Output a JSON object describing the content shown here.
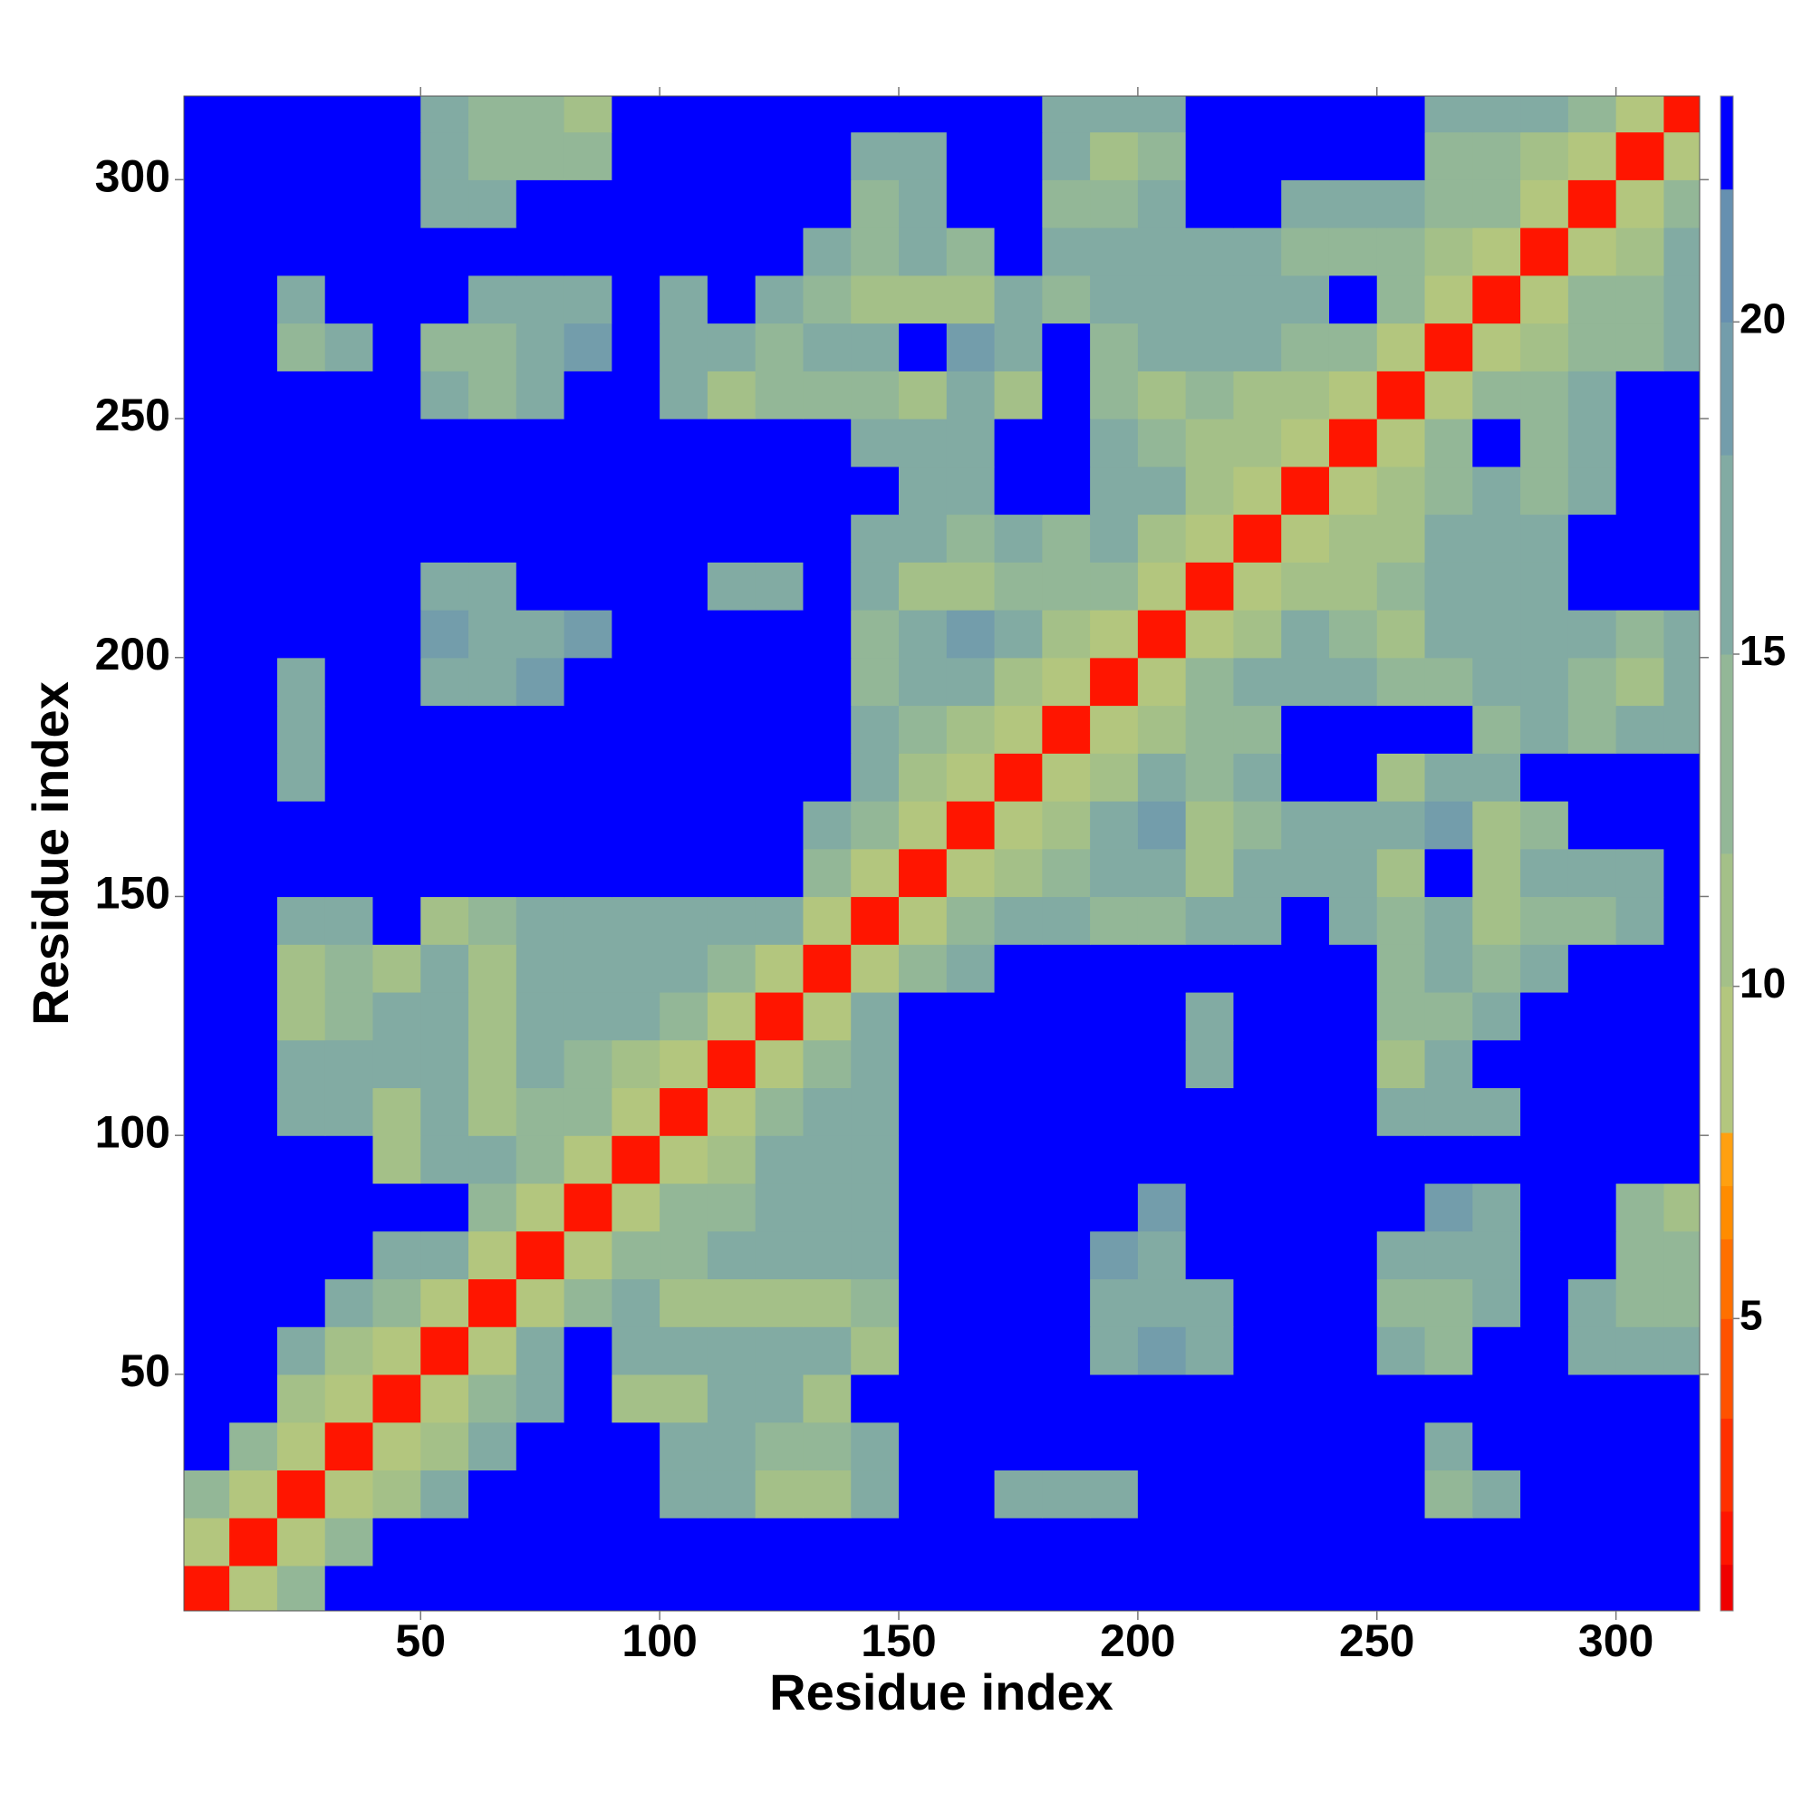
{
  "chart_data": {
    "type": "heatmap",
    "x_label": "Residue index",
    "y_label": "Residue index",
    "xlim": [
      0.5,
      317.5
    ],
    "ylim": [
      0.5,
      317.5
    ],
    "xticks": [
      50,
      100,
      150,
      200,
      250,
      300
    ],
    "yticks": [
      50,
      100,
      150,
      200,
      250,
      300
    ],
    "bins": [
      0,
      10,
      20,
      30,
      40,
      50,
      60,
      70,
      80,
      90,
      100,
      110,
      120,
      130,
      140,
      150,
      160,
      170,
      180,
      190,
      200,
      210,
      220,
      230,
      240,
      250,
      260,
      270,
      280,
      290,
      300,
      310,
      320
    ],
    "z": [
      [
        2,
        9,
        15,
        23,
        23,
        23,
        23,
        23,
        23,
        23,
        23,
        23,
        23,
        23,
        23,
        23,
        23,
        23,
        23,
        23,
        23,
        23,
        23,
        23,
        23,
        23,
        23,
        23,
        23,
        23,
        23,
        23
      ],
      [
        9,
        2,
        9,
        15,
        23,
        23,
        23,
        23,
        23,
        23,
        23,
        23,
        23,
        23,
        23,
        23,
        23,
        23,
        23,
        23,
        23,
        23,
        23,
        23,
        23,
        23,
        23,
        23,
        23,
        23,
        23,
        23
      ],
      [
        15,
        9,
        2,
        9,
        12,
        16,
        23,
        23,
        23,
        23,
        18,
        18,
        12,
        12,
        18,
        23,
        23,
        16,
        16,
        18,
        23,
        23,
        23,
        23,
        23,
        23,
        14,
        18,
        23,
        23,
        23,
        23
      ],
      [
        23,
        15,
        9,
        2,
        9,
        12,
        16,
        23,
        23,
        23,
        16,
        18,
        14,
        14,
        16,
        23,
        23,
        23,
        23,
        23,
        23,
        23,
        23,
        23,
        23,
        23,
        16,
        23,
        23,
        23,
        23,
        23
      ],
      [
        23,
        23,
        12,
        9,
        2,
        9,
        14,
        18,
        23,
        12,
        12,
        18,
        18,
        12,
        23,
        23,
        23,
        23,
        23,
        23,
        23,
        23,
        23,
        23,
        23,
        23,
        23,
        23,
        23,
        23,
        23,
        23
      ],
      [
        23,
        23,
        16,
        12,
        9,
        2,
        9,
        16,
        23,
        16,
        16,
        18,
        18,
        16,
        12,
        23,
        23,
        23,
        23,
        18,
        20,
        18,
        23,
        23,
        23,
        16,
        14,
        23,
        23,
        18,
        16,
        18
      ],
      [
        23,
        23,
        23,
        16,
        14,
        9,
        2,
        9,
        15,
        16,
        12,
        12,
        12,
        12,
        14,
        23,
        23,
        23,
        23,
        18,
        18,
        18,
        23,
        23,
        23,
        14,
        14,
        16,
        23,
        16,
        14,
        14
      ],
      [
        23,
        23,
        23,
        23,
        18,
        16,
        9,
        2,
        9,
        14,
        14,
        16,
        16,
        16,
        16,
        23,
        23,
        23,
        23,
        20,
        18,
        23,
        23,
        23,
        23,
        16,
        16,
        18,
        23,
        23,
        14,
        14
      ],
      [
        23,
        23,
        23,
        23,
        23,
        23,
        15,
        9,
        2,
        9,
        14,
        14,
        16,
        16,
        18,
        23,
        23,
        23,
        23,
        23,
        20,
        23,
        23,
        23,
        23,
        23,
        20,
        18,
        23,
        23,
        14,
        12
      ],
      [
        23,
        23,
        23,
        23,
        12,
        16,
        16,
        14,
        9,
        2,
        9,
        12,
        16,
        18,
        18,
        23,
        23,
        23,
        23,
        23,
        23,
        23,
        23,
        23,
        23,
        23,
        23,
        23,
        23,
        23,
        23,
        23
      ],
      [
        23,
        23,
        18,
        16,
        12,
        16,
        12,
        14,
        14,
        9,
        2,
        9,
        14,
        16,
        18,
        23,
        23,
        23,
        23,
        23,
        23,
        23,
        23,
        23,
        23,
        18,
        18,
        18,
        23,
        23,
        23,
        23
      ],
      [
        23,
        23,
        18,
        18,
        18,
        18,
        12,
        16,
        14,
        12,
        9,
        2,
        9,
        14,
        16,
        23,
        23,
        23,
        23,
        23,
        23,
        16,
        23,
        23,
        23,
        12,
        16,
        23,
        23,
        23,
        23,
        23
      ],
      [
        23,
        23,
        12,
        14,
        18,
        18,
        12,
        16,
        16,
        16,
        14,
        9,
        2,
        9,
        16,
        23,
        23,
        23,
        23,
        23,
        23,
        16,
        23,
        23,
        23,
        14,
        14,
        18,
        23,
        23,
        23,
        23
      ],
      [
        23,
        23,
        12,
        14,
        12,
        16,
        12,
        16,
        16,
        18,
        16,
        14,
        9,
        2,
        9,
        15,
        18,
        23,
        23,
        23,
        23,
        23,
        23,
        23,
        23,
        14,
        16,
        14,
        16,
        23,
        23,
        23
      ],
      [
        23,
        23,
        18,
        16,
        23,
        12,
        14,
        16,
        18,
        18,
        18,
        16,
        16,
        9,
        2,
        9,
        14,
        16,
        18,
        14,
        14,
        16,
        18,
        23,
        18,
        14,
        16,
        12,
        14,
        14,
        16,
        23
      ],
      [
        23,
        23,
        23,
        23,
        23,
        23,
        23,
        23,
        23,
        23,
        23,
        23,
        23,
        15,
        9,
        2,
        9,
        12,
        14,
        16,
        16,
        12,
        16,
        18,
        18,
        12,
        23,
        12,
        16,
        16,
        18,
        23
      ],
      [
        23,
        23,
        23,
        23,
        23,
        23,
        23,
        23,
        23,
        23,
        23,
        23,
        23,
        18,
        14,
        9,
        2,
        9,
        12,
        16,
        20,
        12,
        14,
        16,
        18,
        16,
        20,
        12,
        14,
        23,
        23,
        23
      ],
      [
        23,
        23,
        16,
        23,
        23,
        23,
        23,
        23,
        23,
        23,
        23,
        23,
        23,
        23,
        16,
        12,
        9,
        2,
        9,
        12,
        16,
        14,
        16,
        23,
        23,
        12,
        16,
        18,
        23,
        23,
        23,
        23
      ],
      [
        23,
        23,
        16,
        23,
        23,
        23,
        23,
        23,
        23,
        23,
        23,
        23,
        23,
        23,
        18,
        14,
        12,
        9,
        2,
        9,
        12,
        14,
        14,
        23,
        23,
        23,
        23,
        14,
        16,
        14,
        16,
        18
      ],
      [
        23,
        23,
        18,
        23,
        23,
        18,
        18,
        20,
        23,
        23,
        23,
        23,
        23,
        23,
        14,
        16,
        16,
        12,
        9,
        2,
        9,
        14,
        16,
        18,
        16,
        14,
        14,
        16,
        18,
        14,
        12,
        16
      ],
      [
        23,
        23,
        23,
        23,
        23,
        20,
        18,
        18,
        20,
        23,
        23,
        23,
        23,
        23,
        14,
        16,
        20,
        16,
        12,
        9,
        2,
        9,
        12,
        16,
        14,
        12,
        16,
        16,
        16,
        16,
        14,
        16
      ],
      [
        23,
        23,
        23,
        23,
        23,
        18,
        18,
        23,
        23,
        23,
        23,
        16,
        16,
        23,
        16,
        12,
        12,
        14,
        14,
        14,
        9,
        2,
        9,
        12,
        12,
        14,
        16,
        18,
        16,
        23,
        23,
        23
      ],
      [
        23,
        23,
        23,
        23,
        23,
        23,
        23,
        23,
        23,
        23,
        23,
        23,
        23,
        23,
        18,
        16,
        14,
        16,
        14,
        16,
        12,
        9,
        2,
        9,
        12,
        12,
        16,
        18,
        16,
        23,
        23,
        23
      ],
      [
        23,
        23,
        23,
        23,
        23,
        23,
        23,
        23,
        23,
        23,
        23,
        23,
        23,
        23,
        23,
        18,
        16,
        23,
        23,
        18,
        16,
        12,
        9,
        2,
        9,
        12,
        14,
        16,
        14,
        18,
        23,
        23
      ],
      [
        23,
        23,
        23,
        23,
        23,
        23,
        23,
        23,
        23,
        23,
        23,
        23,
        23,
        23,
        18,
        18,
        18,
        23,
        23,
        16,
        14,
        12,
        12,
        9,
        2,
        9,
        15,
        23,
        14,
        16,
        23,
        23
      ],
      [
        23,
        23,
        23,
        23,
        23,
        16,
        14,
        16,
        23,
        23,
        18,
        12,
        14,
        14,
        14,
        12,
        16,
        12,
        23,
        14,
        12,
        14,
        12,
        12,
        9,
        2,
        9,
        15,
        14,
        16,
        23,
        23
      ],
      [
        23,
        23,
        14,
        16,
        23,
        14,
        14,
        16,
        20,
        23,
        18,
        16,
        14,
        16,
        16,
        23,
        20,
        16,
        23,
        14,
        16,
        16,
        16,
        14,
        15,
        9,
        2,
        9,
        12,
        14,
        14,
        16
      ],
      [
        23,
        23,
        18,
        23,
        23,
        23,
        16,
        18,
        18,
        23,
        18,
        23,
        18,
        14,
        12,
        12,
        12,
        18,
        14,
        16,
        16,
        18,
        18,
        16,
        23,
        15,
        9,
        2,
        9,
        15,
        14,
        16
      ],
      [
        23,
        23,
        23,
        23,
        23,
        23,
        23,
        23,
        23,
        23,
        23,
        23,
        23,
        16,
        14,
        16,
        14,
        23,
        16,
        18,
        16,
        16,
        16,
        14,
        14,
        14,
        12,
        9,
        2,
        9,
        12,
        18
      ],
      [
        23,
        23,
        23,
        23,
        23,
        18,
        16,
        23,
        23,
        23,
        23,
        23,
        23,
        23,
        14,
        16,
        23,
        23,
        14,
        14,
        16,
        23,
        23,
        18,
        16,
        16,
        14,
        15,
        9,
        2,
        9,
        15
      ],
      [
        23,
        23,
        23,
        23,
        23,
        16,
        14,
        14,
        14,
        23,
        23,
        23,
        23,
        23,
        16,
        18,
        23,
        23,
        16,
        12,
        14,
        23,
        23,
        23,
        23,
        23,
        14,
        14,
        12,
        9,
        2,
        9
      ],
      [
        23,
        23,
        23,
        23,
        23,
        18,
        14,
        14,
        12,
        23,
        23,
        23,
        23,
        23,
        23,
        23,
        23,
        23,
        18,
        16,
        16,
        23,
        23,
        23,
        23,
        23,
        16,
        16,
        18,
        15,
        9,
        2
      ]
    ],
    "colorbar": {
      "levels": [
        0.6,
        1.3,
        2.1,
        3.5,
        5.0,
        6.2,
        7.0,
        7.8,
        10,
        12,
        15,
        18,
        20,
        22,
        23.4
      ],
      "colors": [
        "#f00000",
        "#ff1500",
        "#ff3000",
        "#ff5200",
        "#ff7000",
        "#ff8c00",
        "#ffa010",
        "#b3c67e",
        "#a4c088",
        "#93b797",
        "#82aba3",
        "#739dab",
        "#6690b0",
        "#0000ff"
      ],
      "ticks": [
        5,
        10,
        15,
        20
      ]
    }
  }
}
